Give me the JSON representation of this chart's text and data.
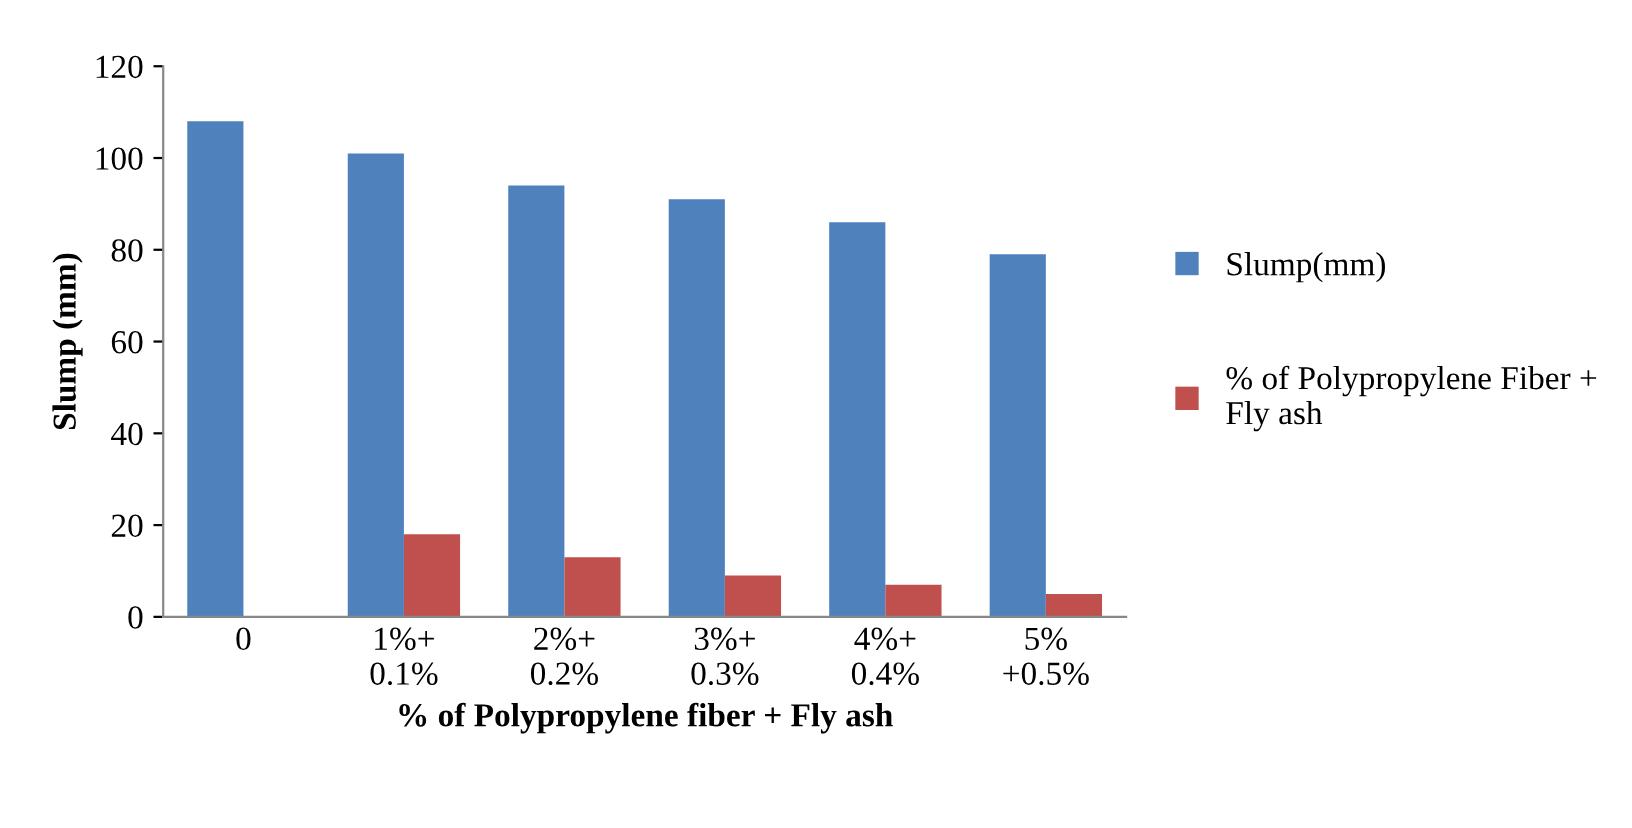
{
  "chart_data": {
    "type": "bar",
    "xlabel": "% of Polypropylene fiber + Fly ash",
    "ylabel": "Slump (mm)",
    "categories": [
      "0",
      "1%+\n0.1%",
      "2%+\n0.2%",
      "3%+\n0.3%",
      "4%+\n0.4%",
      "5%\n+0.5%"
    ],
    "series": [
      {
        "name": "Slump(mm)",
        "color": "#4f81bd",
        "values": [
          108,
          101,
          94,
          91,
          86,
          79
        ]
      },
      {
        "name": "% of Polypropylene Fiber +\nFly ash",
        "color": "#c0504d",
        "values": [
          0,
          18,
          13,
          9,
          7,
          5
        ]
      }
    ],
    "ylim": [
      0,
      120
    ],
    "yticks": [
      0,
      20,
      40,
      60,
      80,
      100,
      120
    ],
    "grid": false,
    "legend": "right"
  }
}
